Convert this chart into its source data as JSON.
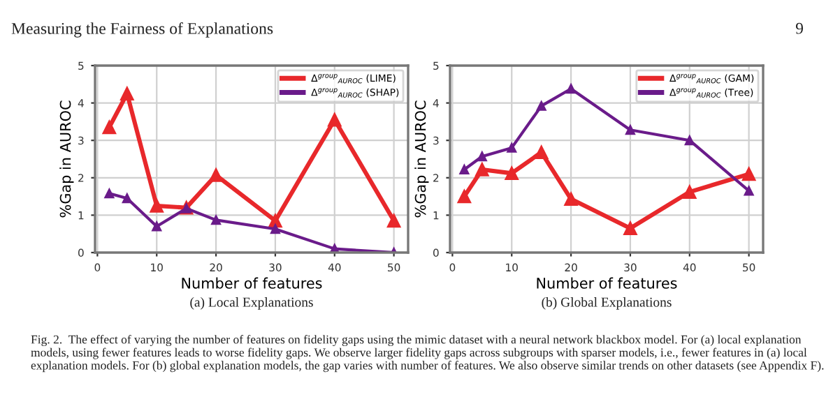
{
  "chart_data": [
    {
      "type": "line",
      "xlabel": "Number of features",
      "ylabel": "%Gap in AUROC",
      "annotations": [
        "Measuring the Fairness of Explanations",
        "(a) Local Explanations"
      ],
      "x": [
        2,
        5,
        10,
        15,
        20,
        30,
        40,
        50
      ],
      "series": [
        {
          "name": "Δ$^{group}$$_{AUROC}$ (LIME)",
          "color": "#e8282b",
          "values": [
            3.35,
            4.25,
            1.25,
            1.2,
            2.07,
            0.85,
            3.55,
            0.85
          ]
        },
        {
          "name": "Δ$^{group}$$_{AUROC}$ (SHAP)",
          "color": "#6a1b8a",
          "values": [
            1.58,
            1.45,
            0.7,
            1.18,
            0.87,
            0.63,
            0.1,
            0.0
          ]
        }
      ],
      "xlim": [
        -0.4,
        52.4
      ],
      "xticks": [
        0,
        10,
        20,
        30,
        40,
        50
      ],
      "ylim": [
        0,
        5
      ],
      "yticks": [
        0,
        1,
        2,
        3,
        4,
        5
      ],
      "grid": true,
      "legend": "top right",
      "marker": "triangle",
      "line_style": "solid"
    },
    {
      "type": "line",
      "xlabel": "Number of features",
      "ylabel": "%Gap in AUROC",
      "annotations": [
        "9",
        "(b) Global Explanations",
        "Fig. 2.  The effect of varying the number of features on fidelity gaps using the mimic dataset with a neural network blackbox model. For (a) local explanation models, using fewer features leads to worse fidelity gaps. We observe larger fidelity gaps across subgroups with sparser models, i.e., fewer features in (a) local explanation models. For (b) global explanation models, the gap varies with number of features. We also observe similar trends on other datasets (see Appendix F)."
      ],
      "x": [
        2,
        5,
        10,
        15,
        20,
        30,
        40,
        50
      ],
      "series": [
        {
          "name": "Δ$^{group}$$_{AUROC}$ (GAM)",
          "color": "#e8282b",
          "values": [
            1.5,
            2.22,
            2.12,
            2.68,
            1.43,
            0.65,
            1.62,
            2.1
          ]
        },
        {
          "name": "Δ$^{group}$$_{AUROC}$ (Tree)",
          "color": "#6a1b8a",
          "values": [
            2.22,
            2.57,
            2.8,
            3.92,
            4.38,
            3.28,
            3.0,
            1.65
          ]
        }
      ],
      "xlim": [
        -0.4,
        52.4
      ],
      "xticks": [
        0,
        10,
        20,
        30,
        40,
        50
      ],
      "ylim": [
        0,
        5
      ],
      "yticks": [
        0,
        1,
        2,
        3,
        4,
        5
      ],
      "grid": true,
      "legend": "top right",
      "marker": "triangle",
      "line_style": "solid"
    }
  ]
}
